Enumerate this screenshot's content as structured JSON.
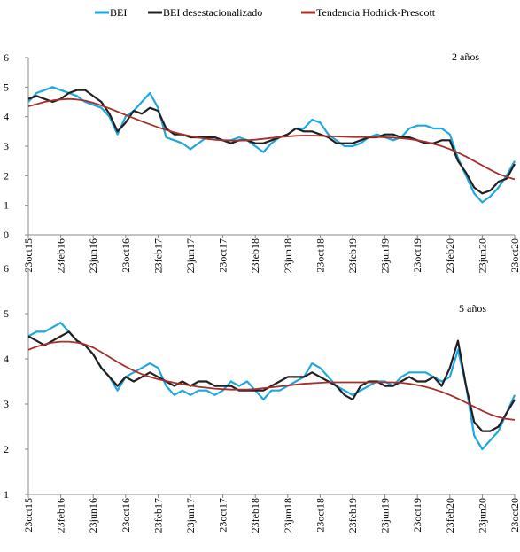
{
  "chart_data": [
    {
      "type": "line",
      "annotation": "2 años",
      "categories": [
        "23oct15",
        null,
        null,
        null,
        "23feb16",
        null,
        null,
        null,
        "23jun16",
        null,
        null,
        null,
        "23oct16",
        null,
        null,
        null,
        "23feb17",
        null,
        null,
        null,
        "23jun17",
        null,
        null,
        null,
        "23oct17",
        null,
        null,
        null,
        "23feb18",
        null,
        null,
        null,
        "23jun18",
        null,
        null,
        null,
        "23oct18",
        null,
        null,
        null,
        "23feb19",
        null,
        null,
        null,
        "23jun19",
        null,
        null,
        null,
        "23oct19",
        null,
        null,
        null,
        "23feb20",
        null,
        null,
        null,
        "23jun20",
        null,
        null,
        null,
        "23oct20"
      ],
      "ylim": [
        0,
        6
      ],
      "yticks": [
        0,
        1,
        2,
        3,
        4,
        5,
        6
      ],
      "series": [
        {
          "name": "BEI",
          "color": "#1ea7e1",
          "values": [
            4.5,
            4.8,
            4.9,
            5.0,
            4.9,
            4.8,
            4.7,
            4.5,
            4.4,
            4.3,
            4.0,
            3.4,
            4.0,
            4.2,
            4.5,
            4.8,
            4.3,
            3.3,
            3.2,
            3.1,
            2.9,
            3.1,
            3.3,
            3.3,
            3.2,
            3.2,
            3.3,
            3.2,
            3.0,
            2.8,
            3.1,
            3.3,
            3.4,
            3.6,
            3.6,
            3.9,
            3.8,
            3.4,
            3.2,
            3.0,
            3.0,
            3.1,
            3.3,
            3.4,
            3.3,
            3.2,
            3.3,
            3.6,
            3.7,
            3.7,
            3.6,
            3.6,
            3.4,
            2.6,
            2.0,
            1.4,
            1.1,
            1.3,
            1.6,
            2.0,
            2.5
          ]
        },
        {
          "name": "BEI desestacionalizado",
          "color": "#231f20",
          "values": [
            4.6,
            4.7,
            4.6,
            4.5,
            4.6,
            4.8,
            4.9,
            4.9,
            4.7,
            4.5,
            4.1,
            3.5,
            3.8,
            4.2,
            4.1,
            4.3,
            4.2,
            3.6,
            3.4,
            3.4,
            3.3,
            3.3,
            3.3,
            3.3,
            3.2,
            3.1,
            3.2,
            3.2,
            3.1,
            3.1,
            3.2,
            3.3,
            3.4,
            3.6,
            3.5,
            3.5,
            3.4,
            3.3,
            3.1,
            3.1,
            3.1,
            3.2,
            3.3,
            3.3,
            3.4,
            3.4,
            3.3,
            3.3,
            3.2,
            3.1,
            3.1,
            3.2,
            3.2,
            2.5,
            2.1,
            1.6,
            1.4,
            1.5,
            1.8,
            1.9,
            2.4
          ]
        },
        {
          "name": "Tendencia Hodrick-Prescott",
          "color": "#a5302c",
          "values": [
            4.35,
            4.42,
            4.5,
            4.55,
            4.58,
            4.6,
            4.58,
            4.54,
            4.47,
            4.38,
            4.28,
            4.17,
            4.06,
            3.95,
            3.84,
            3.74,
            3.64,
            3.55,
            3.47,
            3.4,
            3.34,
            3.29,
            3.25,
            3.22,
            3.2,
            3.19,
            3.19,
            3.2,
            3.22,
            3.25,
            3.28,
            3.31,
            3.33,
            3.35,
            3.36,
            3.36,
            3.35,
            3.34,
            3.33,
            3.32,
            3.31,
            3.31,
            3.31,
            3.31,
            3.3,
            3.29,
            3.27,
            3.24,
            3.2,
            3.15,
            3.08,
            3.0,
            2.9,
            2.78,
            2.65,
            2.5,
            2.35,
            2.2,
            2.06,
            1.96,
            1.88
          ]
        }
      ]
    },
    {
      "type": "line",
      "annotation": "5 años",
      "categories": [
        "23oct15",
        null,
        null,
        null,
        "23feb16",
        null,
        null,
        null,
        "23jun16",
        null,
        null,
        null,
        "23oct16",
        null,
        null,
        null,
        "23feb17",
        null,
        null,
        null,
        "23jun17",
        null,
        null,
        null,
        "23oct17",
        null,
        null,
        null,
        "23feb18",
        null,
        null,
        null,
        "23jun18",
        null,
        null,
        null,
        "23oct18",
        null,
        null,
        null,
        "23feb19",
        null,
        null,
        null,
        "23jun19",
        null,
        null,
        null,
        "23oct19",
        null,
        null,
        null,
        "23feb20",
        null,
        null,
        null,
        "23jun20",
        null,
        null,
        null,
        "23oct20"
      ],
      "ylim": [
        1,
        6
      ],
      "yticks": [
        1,
        2,
        3,
        4,
        5,
        6
      ],
      "series": [
        {
          "color": "#1ea7e1",
          "values": [
            4.5,
            4.6,
            4.6,
            4.7,
            4.8,
            4.6,
            4.4,
            4.3,
            4.1,
            3.8,
            3.6,
            3.3,
            3.6,
            3.7,
            3.8,
            3.9,
            3.8,
            3.4,
            3.2,
            3.3,
            3.2,
            3.3,
            3.3,
            3.2,
            3.3,
            3.5,
            3.4,
            3.5,
            3.3,
            3.1,
            3.3,
            3.3,
            3.4,
            3.5,
            3.6,
            3.9,
            3.8,
            3.6,
            3.4,
            3.3,
            3.2,
            3.3,
            3.4,
            3.5,
            3.5,
            3.4,
            3.6,
            3.7,
            3.7,
            3.7,
            3.6,
            3.5,
            3.6,
            4.2,
            3.4,
            2.3,
            2.0,
            2.2,
            2.4,
            2.8,
            3.2
          ]
        },
        {
          "color": "#231f20",
          "values": [
            4.5,
            4.4,
            4.3,
            4.4,
            4.5,
            4.6,
            4.4,
            4.3,
            4.1,
            3.8,
            3.6,
            3.4,
            3.6,
            3.5,
            3.6,
            3.7,
            3.6,
            3.5,
            3.4,
            3.5,
            3.4,
            3.5,
            3.5,
            3.4,
            3.4,
            3.4,
            3.3,
            3.3,
            3.3,
            3.3,
            3.4,
            3.5,
            3.6,
            3.6,
            3.6,
            3.7,
            3.6,
            3.5,
            3.4,
            3.2,
            3.1,
            3.4,
            3.5,
            3.5,
            3.4,
            3.4,
            3.5,
            3.6,
            3.5,
            3.5,
            3.6,
            3.4,
            3.8,
            4.4,
            3.4,
            2.6,
            2.4,
            2.4,
            2.5,
            2.8,
            3.1
          ]
        },
        {
          "color": "#a5302c",
          "values": [
            4.2,
            4.27,
            4.32,
            4.36,
            4.38,
            4.38,
            4.36,
            4.32,
            4.25,
            4.15,
            4.04,
            3.93,
            3.83,
            3.74,
            3.66,
            3.6,
            3.55,
            3.51,
            3.47,
            3.44,
            3.41,
            3.38,
            3.36,
            3.34,
            3.33,
            3.32,
            3.32,
            3.32,
            3.33,
            3.35,
            3.37,
            3.39,
            3.41,
            3.43,
            3.45,
            3.46,
            3.47,
            3.48,
            3.48,
            3.48,
            3.48,
            3.48,
            3.48,
            3.48,
            3.48,
            3.48,
            3.47,
            3.45,
            3.42,
            3.38,
            3.33,
            3.27,
            3.2,
            3.12,
            3.03,
            2.94,
            2.85,
            2.77,
            2.71,
            2.67,
            2.65
          ]
        }
      ]
    }
  ]
}
